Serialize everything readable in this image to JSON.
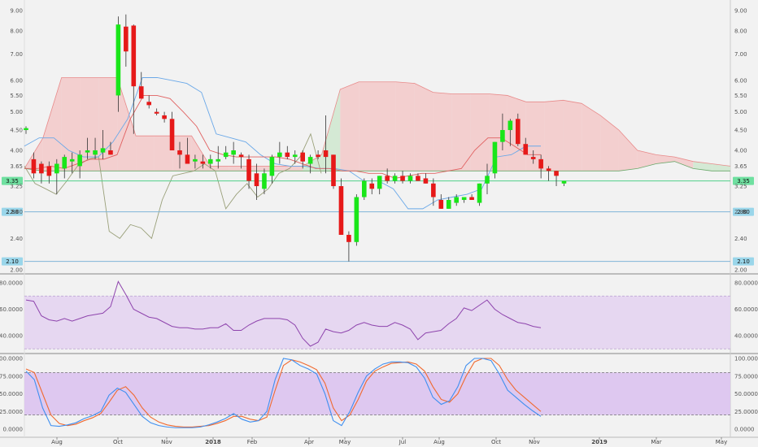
{
  "colors": {
    "background": "#f2f2f2",
    "up": "#19e619",
    "down": "#e61919",
    "kumo_bear_fill": "#f3c9c9",
    "kumo_bull_fill": "#cfe7cf",
    "kumo_bear_line": "#e88a8a",
    "kumo_bull_line": "#6aa86a",
    "tenkan": "#e06060",
    "kijun": "#6aa8e8",
    "chikou": "#9aa07a",
    "hline_green": "#4fd08a",
    "hline_blue": "#7fb4d8",
    "rsi_line": "#8e44ad",
    "rsi_band": "#e4d4f1",
    "stoch_k": "#3f8ff0",
    "stoch_d": "#f06a30",
    "stoch_band": "#dcc3f0",
    "badge_blue": "#9ad6ea",
    "badge_green": "#6fe0a0"
  },
  "chart_data": [
    {
      "type": "candlestick",
      "panel": "price",
      "y_ticks": [
        "9.00",
        "8.00",
        "7.00",
        "6.00",
        "5.50",
        "5.00",
        "4.50",
        "4.00",
        "3.65",
        "3.25",
        "2.80",
        "2.40",
        "2.00"
      ],
      "y_tick_values": [
        9.0,
        8.0,
        7.0,
        6.0,
        5.5,
        5.0,
        4.5,
        4.0,
        3.65,
        3.25,
        2.8,
        2.4,
        2.0
      ],
      "x_ticks": [
        "Aug",
        "Oct",
        "Nov",
        "2018",
        "Feb",
        "Apr",
        "May",
        "Jul",
        "Aug",
        "Oct",
        "Nov",
        "2019",
        "Mar",
        "May"
      ],
      "x_tick_bold": [
        false,
        false,
        false,
        true,
        false,
        false,
        false,
        false,
        false,
        false,
        false,
        true,
        false,
        false
      ],
      "price_badges": [
        {
          "label": "3.35",
          "value": 3.35,
          "style": "green"
        },
        {
          "label": "2.80",
          "value": 2.8,
          "style": "blue"
        },
        {
          "label": "2.10",
          "value": 2.1,
          "style": "blue"
        }
      ],
      "horizontal_lines": [
        {
          "value": 3.35,
          "style": "green"
        },
        {
          "value": 2.8,
          "style": "blue"
        },
        {
          "value": 2.1,
          "style": "blue"
        }
      ],
      "candles": [
        [
          4.5,
          4.6,
          4.4,
          4.55
        ],
        [
          3.8,
          3.95,
          3.4,
          3.5
        ],
        [
          3.7,
          3.75,
          3.3,
          3.5
        ],
        [
          3.65,
          3.75,
          3.3,
          3.45
        ],
        [
          3.5,
          3.8,
          3.1,
          3.7
        ],
        [
          3.6,
          3.9,
          3.4,
          3.85
        ],
        [
          3.75,
          3.95,
          3.5,
          3.8
        ],
        [
          3.65,
          4.0,
          3.4,
          3.9
        ],
        [
          3.95,
          4.3,
          3.8,
          4.0
        ],
        [
          3.9,
          4.3,
          3.8,
          4.0
        ],
        [
          3.95,
          4.5,
          3.8,
          4.05
        ],
        [
          4.0,
          4.2,
          3.9,
          3.9
        ],
        [
          5.5,
          8.7,
          5.0,
          8.3
        ],
        [
          8.2,
          8.8,
          6.5,
          7.1
        ],
        [
          8.25,
          8.3,
          4.4,
          5.8
        ],
        [
          5.8,
          6.3,
          5.4,
          5.4
        ],
        [
          5.3,
          5.5,
          5.1,
          5.2
        ],
        [
          5.0,
          5.1,
          4.9,
          4.95
        ],
        [
          4.9,
          5.0,
          4.7,
          4.8
        ],
        [
          4.8,
          5.0,
          4.0,
          4.0
        ],
        [
          4.0,
          4.2,
          3.6,
          3.9
        ],
        [
          3.9,
          4.3,
          3.7,
          3.7
        ],
        [
          3.75,
          3.9,
          3.6,
          3.8
        ],
        [
          3.75,
          3.9,
          3.6,
          3.7
        ],
        [
          3.7,
          3.9,
          3.6,
          3.8
        ],
        [
          3.75,
          4.1,
          3.6,
          3.8
        ],
        [
          3.85,
          4.1,
          3.8,
          3.95
        ],
        [
          3.9,
          4.2,
          3.7,
          4.0
        ],
        [
          3.9,
          3.95,
          3.6,
          3.85
        ],
        [
          3.8,
          3.9,
          3.2,
          3.35
        ],
        [
          3.5,
          3.7,
          3.0,
          3.25
        ],
        [
          3.2,
          3.6,
          3.1,
          3.5
        ],
        [
          3.45,
          3.9,
          3.3,
          3.85
        ],
        [
          3.85,
          4.2,
          3.7,
          3.95
        ],
        [
          3.95,
          4.1,
          3.8,
          3.85
        ],
        [
          3.85,
          4.0,
          3.7,
          3.9
        ],
        [
          3.95,
          4.0,
          3.6,
          3.75
        ],
        [
          3.7,
          3.9,
          3.5,
          3.85
        ],
        [
          3.9,
          4.0,
          3.8,
          3.85
        ],
        [
          4.0,
          4.9,
          3.5,
          3.85
        ],
        [
          3.9,
          3.9,
          3.2,
          3.25
        ],
        [
          3.25,
          3.4,
          2.5,
          2.45
        ],
        [
          2.45,
          2.5,
          2.1,
          2.35
        ],
        [
          2.35,
          3.1,
          2.3,
          3.05
        ],
        [
          3.05,
          3.4,
          3.0,
          3.35
        ],
        [
          3.3,
          3.4,
          3.1,
          3.2
        ],
        [
          3.2,
          3.45,
          3.1,
          3.45
        ],
        [
          3.45,
          3.6,
          3.3,
          3.35
        ],
        [
          3.35,
          3.5,
          3.3,
          3.45
        ],
        [
          3.45,
          3.55,
          3.3,
          3.35
        ],
        [
          3.35,
          3.5,
          3.3,
          3.45
        ],
        [
          3.45,
          3.5,
          3.35,
          3.35
        ],
        [
          3.4,
          3.5,
          3.3,
          3.3
        ],
        [
          3.3,
          3.4,
          2.9,
          3.05
        ],
        [
          3.0,
          3.1,
          2.85,
          2.85
        ],
        [
          2.85,
          3.05,
          2.85,
          3.0
        ],
        [
          2.95,
          3.1,
          2.9,
          3.05
        ],
        [
          3.0,
          3.05,
          2.95,
          3.05
        ],
        [
          3.05,
          3.1,
          3.0,
          3.0
        ],
        [
          2.95,
          3.3,
          2.9,
          3.3
        ],
        [
          3.3,
          3.7,
          3.1,
          3.45
        ],
        [
          3.5,
          4.2,
          3.4,
          4.2
        ],
        [
          4.2,
          4.95,
          4.0,
          4.5
        ],
        [
          4.5,
          4.8,
          4.1,
          4.75
        ],
        [
          4.8,
          4.95,
          4.1,
          4.15
        ],
        [
          4.15,
          4.3,
          3.9,
          3.9
        ],
        [
          3.85,
          4.0,
          3.7,
          3.8
        ],
        [
          3.8,
          3.9,
          3.4,
          3.6
        ],
        [
          3.6,
          3.65,
          3.35,
          3.55
        ],
        [
          3.55,
          3.55,
          3.25,
          3.45
        ],
        [
          3.3,
          3.35,
          3.25,
          3.35
        ]
      ],
      "kumo_top": [
        3.6,
        4.3,
        6.1,
        6.1,
        6.1,
        6.1,
        4.35,
        4.35,
        4.35,
        4.35,
        3.65,
        3.65,
        3.65,
        3.65,
        3.65,
        3.65,
        3.9,
        5.7,
        5.95,
        5.95,
        5.95,
        5.9,
        5.6,
        5.55,
        5.55,
        5.55,
        5.5,
        5.3,
        5.3,
        5.35,
        5.25,
        4.9,
        4.5,
        4.0,
        3.9,
        3.85,
        3.75,
        3.7,
        3.65
      ],
      "kumo_bottom": [
        3.6,
        3.55,
        3.55,
        3.55,
        3.55,
        3.55,
        3.55,
        3.55,
        3.55,
        3.55,
        3.55,
        3.55,
        3.55,
        3.55,
        3.55,
        3.55,
        3.55,
        3.55,
        3.55,
        3.55,
        3.55,
        3.55,
        3.55,
        3.55,
        3.55,
        3.55,
        3.55,
        3.55,
        3.55,
        3.55,
        3.55,
        3.55,
        3.55,
        3.6,
        3.7,
        3.75,
        3.6,
        3.55,
        3.55
      ],
      "tenkan": [
        3.6,
        3.6,
        3.65,
        3.6,
        3.7,
        3.8,
        3.8,
        3.9,
        4.8,
        5.5,
        5.5,
        5.4,
        5.0,
        4.6,
        4.0,
        3.9,
        3.85,
        3.85,
        3.85,
        3.85,
        3.8,
        3.7,
        3.6,
        3.6,
        3.55,
        3.55,
        3.5,
        3.5,
        3.4,
        3.45,
        3.5,
        3.5,
        3.55,
        3.6,
        4.0,
        4.3,
        4.3,
        4.1,
        3.9,
        3.9
      ],
      "kijun": [
        4.1,
        4.3,
        4.3,
        4.0,
        3.85,
        3.85,
        4.2,
        4.8,
        6.1,
        6.1,
        6.0,
        5.9,
        5.6,
        4.4,
        4.3,
        4.2,
        3.9,
        3.7,
        3.65,
        3.65,
        3.6,
        3.6,
        3.55,
        3.35,
        3.35,
        3.2,
        2.85,
        2.85,
        3.0,
        3.05,
        3.1,
        3.2,
        3.85,
        3.9,
        4.1,
        4.1
      ],
      "chikou": [
        3.65,
        3.3,
        3.2,
        3.1,
        3.35,
        3.65,
        3.8,
        3.85,
        2.5,
        2.4,
        2.6,
        2.55,
        2.4,
        3.0,
        3.45,
        3.5,
        3.55,
        3.7,
        3.55,
        2.85,
        3.1,
        3.3,
        3.05,
        3.2,
        3.5,
        3.6,
        3.85,
        4.4,
        3.5
      ]
    },
    {
      "type": "line",
      "panel": "rsi",
      "y_ticks": [
        "80.0000",
        "60.0000",
        "40.0000"
      ],
      "y_tick_values": [
        80,
        60,
        40
      ],
      "band": [
        30,
        70
      ],
      "values": [
        67,
        66,
        55,
        52,
        51,
        53,
        51,
        53,
        55,
        56,
        57,
        62,
        81,
        71,
        60,
        57,
        54,
        53,
        50,
        47,
        46,
        46,
        45,
        45,
        46,
        46,
        49,
        44,
        44,
        48,
        51,
        53,
        53,
        53,
        52,
        48,
        38,
        32,
        35,
        45,
        43,
        42,
        44,
        48,
        50,
        48,
        47,
        47,
        50,
        48,
        45,
        37,
        42,
        43,
        44,
        49,
        53,
        61,
        59,
        63,
        67,
        60,
        56,
        53,
        50,
        49,
        47,
        46
      ]
    },
    {
      "type": "line",
      "panel": "stochastic",
      "y_ticks": [
        "100.0000",
        "75.0000",
        "50.0000",
        "25.0000",
        "0.0000"
      ],
      "y_tick_values": [
        100,
        75,
        50,
        25,
        0
      ],
      "band": [
        20,
        80
      ],
      "series": [
        {
          "key": "k",
          "values": [
            82,
            70,
            30,
            5,
            4,
            6,
            9,
            15,
            19,
            25,
            48,
            58,
            52,
            35,
            18,
            9,
            5,
            3,
            2,
            2,
            2,
            3,
            6,
            10,
            15,
            22,
            14,
            10,
            12,
            25,
            70,
            100,
            98,
            90,
            85,
            78,
            50,
            12,
            5,
            25,
            52,
            75,
            85,
            92,
            95,
            95,
            94,
            88,
            72,
            45,
            35,
            40,
            60,
            90,
            100,
            100,
            97,
            78,
            55,
            45,
            35,
            26,
            18
          ]
        },
        {
          "key": "d",
          "values": [
            85,
            80,
            50,
            20,
            8,
            5,
            7,
            12,
            16,
            22,
            38,
            55,
            60,
            48,
            30,
            17,
            10,
            6,
            4,
            3,
            3,
            4,
            5,
            8,
            12,
            18,
            18,
            14,
            12,
            17,
            55,
            90,
            98,
            95,
            90,
            84,
            65,
            30,
            12,
            20,
            42,
            68,
            82,
            88,
            93,
            94,
            95,
            92,
            82,
            60,
            42,
            38,
            50,
            75,
            95,
            100,
            100,
            90,
            70,
            55,
            45,
            35,
            25
          ]
        }
      ]
    }
  ]
}
